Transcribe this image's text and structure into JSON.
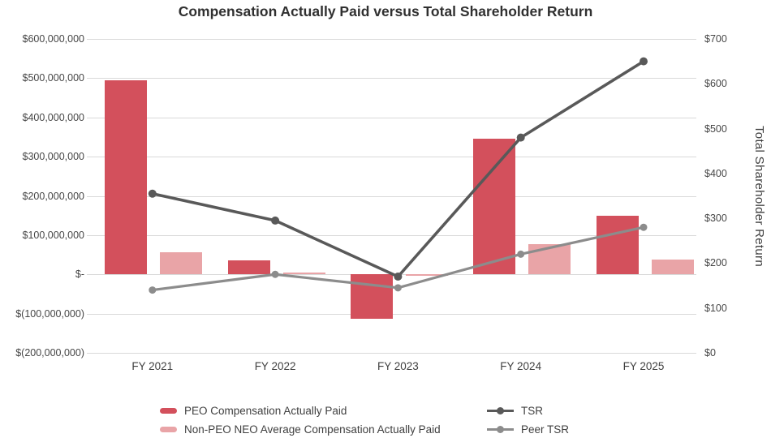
{
  "title": "Compensation Actually Paid versus Total Shareholder Return",
  "chart_data": {
    "type": "bar",
    "subtype": "bar-line-combo",
    "categories": [
      "FY 2021",
      "FY 2022",
      "FY 2023",
      "FY 2024",
      "FY 2025"
    ],
    "bar_series": [
      {
        "name": "PEO Compensation Actually Paid",
        "color": "#d3505c",
        "axis": "left",
        "values": [
          495000000,
          36000000,
          -113000000,
          345000000,
          150000000
        ]
      },
      {
        "name": "Non-PEO NEO Average Compensation Actually Paid",
        "color": "#e9a4a7",
        "axis": "left",
        "values": [
          57000000,
          2000000,
          -3000000,
          76000000,
          38000000
        ]
      }
    ],
    "line_series": [
      {
        "name": "TSR",
        "color": "#595959",
        "axis": "right",
        "values": [
          355,
          295,
          170,
          480,
          650
        ]
      },
      {
        "name": "Peer TSR",
        "color": "#8c8c8c",
        "axis": "right",
        "values": [
          140,
          175,
          145,
          220,
          280
        ]
      }
    ],
    "left_axis": {
      "title": "",
      "min": -200000000,
      "max": 600000000,
      "step": 100000000,
      "tick_labels": [
        "$600,000,000",
        "$500,000,000",
        "$400,000,000",
        "$300,000,000",
        "$200,000,000",
        "$100,000,000",
        "$-",
        "$(100,000,000)",
        "$(200,000,000)"
      ]
    },
    "right_axis": {
      "title": "Total Shareholder Return",
      "min": 0,
      "max": 700,
      "step": 100,
      "tick_labels": [
        "$700",
        "$600",
        "$500",
        "$400",
        "$300",
        "$200",
        "$100",
        "$0"
      ]
    },
    "grid": true,
    "gridline_color": "#d9d9d9",
    "legend_position": "bottom"
  }
}
